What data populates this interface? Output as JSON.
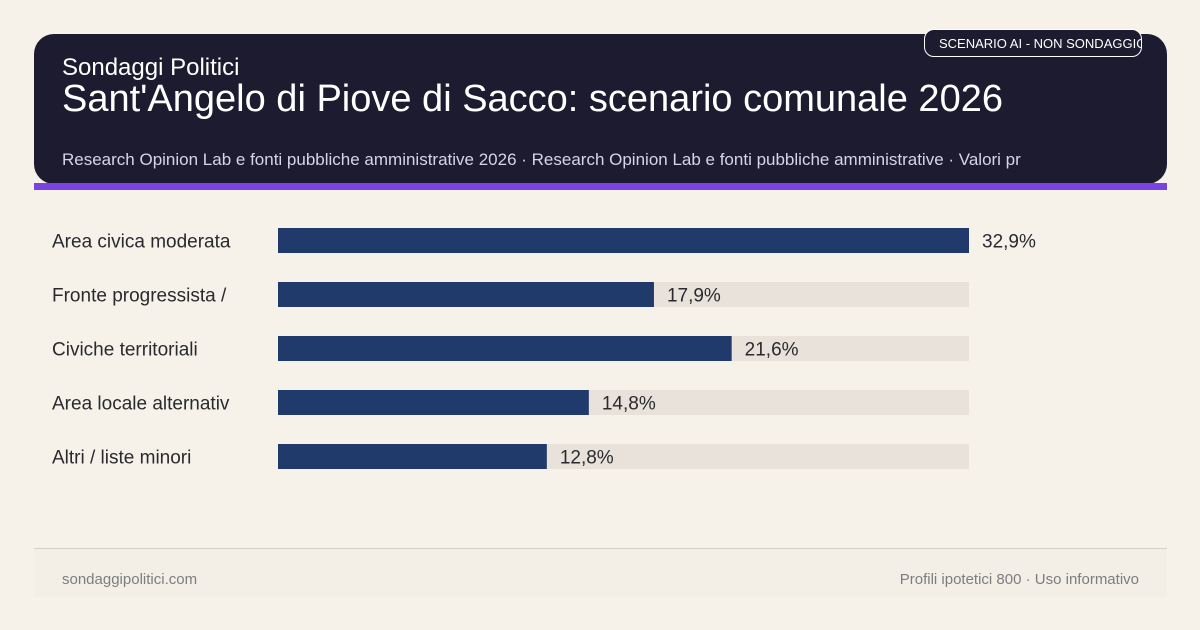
{
  "header": {
    "brand": "Sondaggi Politici",
    "title": "Sant'Angelo di Piove di Sacco: scenario comunale 2026",
    "sources": "Research Opinion Lab e fonti pubbliche amministrative 2026 · Research Opinion Lab e fonti pubbliche amministrative · Valori pr",
    "badge": "SCENARIO AI - NON SONDAGGIO"
  },
  "chart_data": {
    "type": "bar",
    "orientation": "horizontal",
    "categories": [
      "Area civica moderata",
      "Fronte progressista /",
      "Civiche territoriali",
      "Area locale alternativ",
      "Altri / liste minori"
    ],
    "values": [
      32.9,
      17.9,
      21.6,
      14.8,
      12.8
    ],
    "value_labels": [
      "32,9%",
      "17,9%",
      "21,6%",
      "14,8%",
      "12,8%"
    ],
    "xlim": [
      0,
      32.9
    ],
    "grid": false,
    "colors": {
      "bar": "#1f3a6b",
      "track": "#e9e2da"
    }
  },
  "footer": {
    "site": "sondaggipolitici.com",
    "note": "Profili ipotetici 800 · Uso informativo"
  }
}
